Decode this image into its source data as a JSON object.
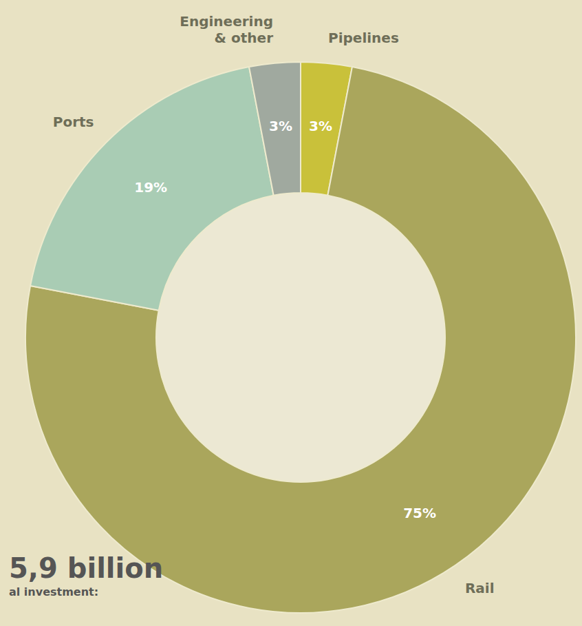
{
  "chart_data": {
    "type": "pie",
    "title": "5,9 billion",
    "subtitle": "al investment:",
    "categories": [
      "Pipelines",
      "Rail",
      "Ports",
      "Engineering & other"
    ],
    "values": [
      3,
      75,
      19,
      3
    ],
    "value_labels": [
      "3%",
      "75%",
      "19%",
      "3%"
    ],
    "colors": [
      "#c9c13a",
      "#aaa65c",
      "#a9ccb4",
      "#a0a99f"
    ],
    "data_labels": true
  }
}
